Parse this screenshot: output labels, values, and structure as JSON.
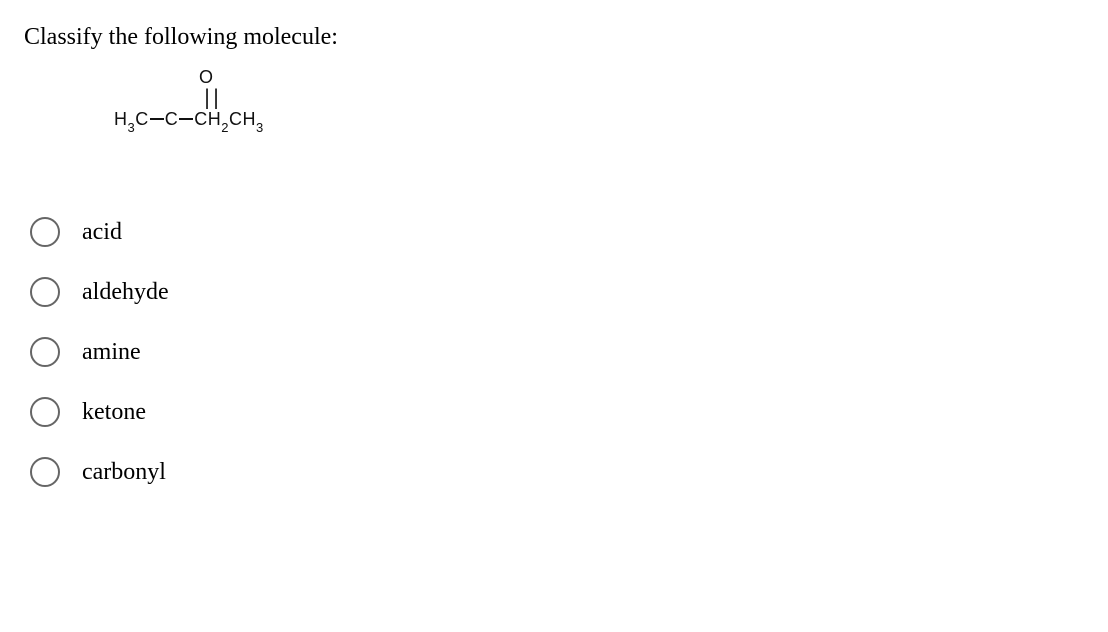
{
  "question": "Classify the following molecule:",
  "molecule": {
    "top_atom": "O",
    "double_bond": "||",
    "left_group": "H",
    "left_sub": "3",
    "left_c": "C",
    "center_c": "C",
    "ch_group": "CH",
    "ch_sub": "2",
    "right_ch": "CH",
    "right_sub": "3"
  },
  "options": [
    {
      "label": "acid"
    },
    {
      "label": "aldehyde"
    },
    {
      "label": "amine"
    },
    {
      "label": "ketone"
    },
    {
      "label": "carbonyl"
    }
  ]
}
